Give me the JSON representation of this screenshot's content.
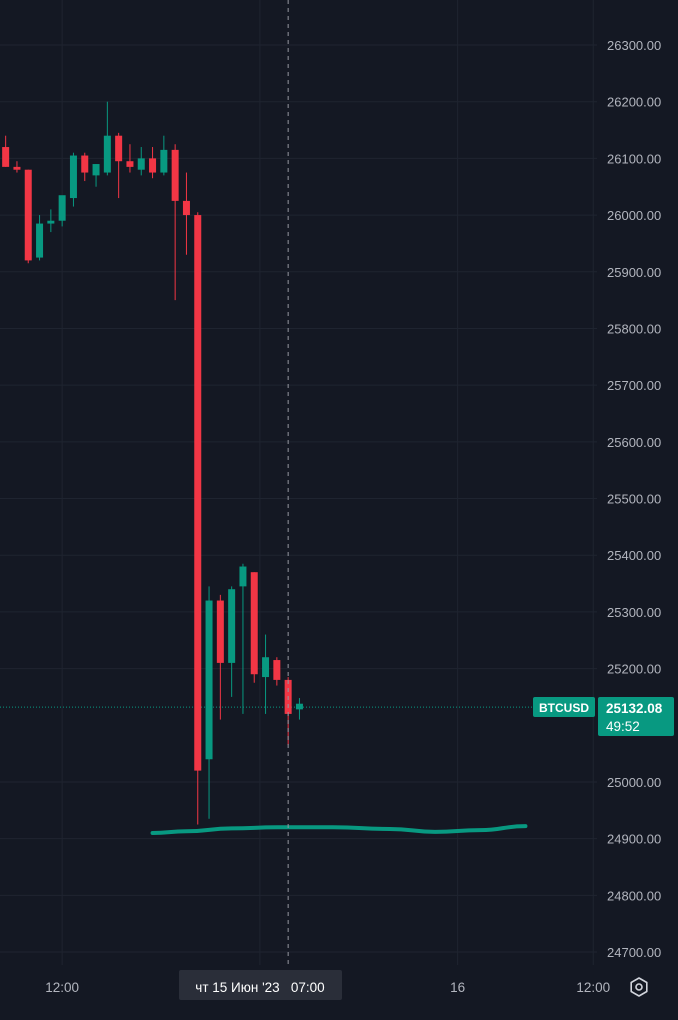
{
  "theme": {
    "background": "#141823",
    "grid": "#1f2430",
    "axis_text": "#b2b5be",
    "up": "#089981",
    "down": "#f23645",
    "crosshair": "#9598a1",
    "last_price_line": "#089981"
  },
  "symbol": "BTCUSD",
  "last_price": "25132.08",
  "countdown": "49:52",
  "crosshair_time_label": "чт 15 Июн '23   07:00",
  "chart_data": {
    "type": "candlestick",
    "ylim": [
      24650,
      26380
    ],
    "y_ticks": [
      26300,
      26200,
      26100,
      26000,
      25900,
      25800,
      25700,
      25600,
      25500,
      25400,
      25300,
      25200,
      25000,
      24900,
      24800,
      24700
    ],
    "y_tick_labels": [
      "26300.00",
      "26200.00",
      "26100.00",
      "26000.00",
      "25900.00",
      "25800.00",
      "25700.00",
      "25600.00",
      "25500.00",
      "25400.00",
      "25300.00",
      "25200.00",
      "25000.00",
      "24900.00",
      "24800.00",
      "24700.00"
    ],
    "x_tick_labels": [
      {
        "label": "12:00",
        "bar": 5.5
      },
      {
        "label": "16",
        "bar": 40.5
      },
      {
        "label": "12:00",
        "bar": 52.5
      }
    ],
    "bar_start": 0,
    "candles": [
      {
        "o": 26120,
        "h": 26140,
        "l": 26085,
        "c": 26085
      },
      {
        "o": 26085,
        "h": 26095,
        "l": 26075,
        "c": 26080
      },
      {
        "o": 26080,
        "h": 26080,
        "l": 25915,
        "c": 25920
      },
      {
        "o": 25925,
        "h": 26000,
        "l": 25920,
        "c": 25985
      },
      {
        "o": 25985,
        "h": 26010,
        "l": 25970,
        "c": 25990
      },
      {
        "o": 25990,
        "h": 26020,
        "l": 25980,
        "c": 26035
      },
      {
        "o": 26030,
        "h": 26110,
        "l": 26015,
        "c": 26105
      },
      {
        "o": 26105,
        "h": 26110,
        "l": 26060,
        "c": 26075
      },
      {
        "o": 26070,
        "h": 26090,
        "l": 26050,
        "c": 26090
      },
      {
        "o": 26075,
        "h": 26200,
        "l": 26070,
        "c": 26140
      },
      {
        "o": 26140,
        "h": 26145,
        "l": 26030,
        "c": 26095
      },
      {
        "o": 26095,
        "h": 26125,
        "l": 26075,
        "c": 26085
      },
      {
        "o": 26080,
        "h": 26120,
        "l": 26070,
        "c": 26100
      },
      {
        "o": 26100,
        "h": 26120,
        "l": 26065,
        "c": 26075
      },
      {
        "o": 26075,
        "h": 26140,
        "l": 26070,
        "c": 26115
      },
      {
        "o": 26115,
        "h": 26125,
        "l": 25850,
        "c": 26025
      },
      {
        "o": 26025,
        "h": 26075,
        "l": 25930,
        "c": 26000
      },
      {
        "o": 26000,
        "h": 26005,
        "l": 24925,
        "c": 25020
      },
      {
        "o": 25040,
        "h": 25345,
        "l": 24935,
        "c": 25320
      },
      {
        "o": 25320,
        "h": 25330,
        "l": 25110,
        "c": 25210
      },
      {
        "o": 25210,
        "h": 25345,
        "l": 25150,
        "c": 25340
      },
      {
        "o": 25345,
        "h": 25385,
        "l": 25120,
        "c": 25380
      },
      {
        "o": 25370,
        "h": 25370,
        "l": 25175,
        "c": 25190
      },
      {
        "o": 25185,
        "h": 25260,
        "l": 25120,
        "c": 25220
      },
      {
        "o": 25215,
        "h": 25220,
        "l": 25170,
        "c": 25180
      },
      {
        "o": 25180,
        "h": 25185,
        "l": 25065,
        "c": 25120
      },
      {
        "o": 25128,
        "h": 25148,
        "l": 25110,
        "c": 25138
      }
    ],
    "trend_curve": {
      "color": "#089981",
      "points": [
        {
          "bar": 13.5,
          "y": 24910
        },
        {
          "bar": 16.5,
          "y": 24913
        },
        {
          "bar": 20.5,
          "y": 24918
        },
        {
          "bar": 24.5,
          "y": 24920
        },
        {
          "bar": 29.5,
          "y": 24920
        },
        {
          "bar": 34.5,
          "y": 24917
        },
        {
          "bar": 38.5,
          "y": 24912
        },
        {
          "bar": 42.5,
          "y": 24915
        },
        {
          "bar": 46.5,
          "y": 24922
        }
      ]
    },
    "crosshair_bar": 25.5
  }
}
